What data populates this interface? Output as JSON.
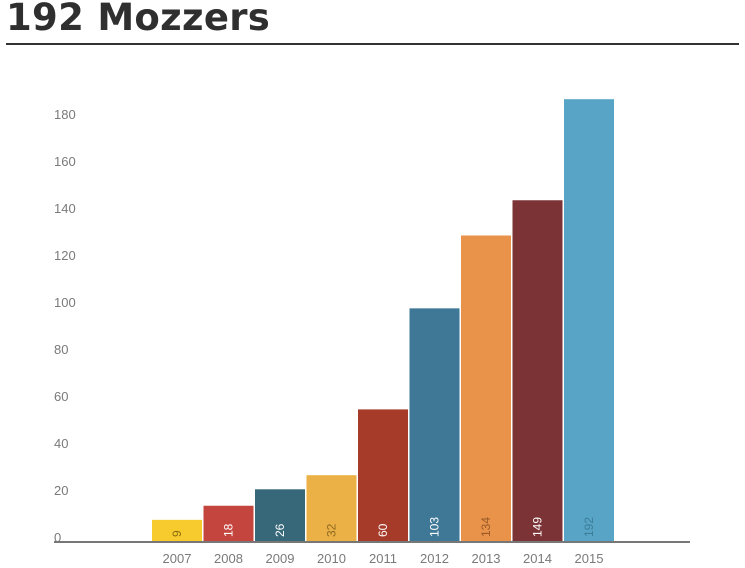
{
  "title": "192 Mozzers",
  "chart_data": {
    "type": "bar",
    "title": "192 Mozzers",
    "xlabel": "",
    "ylabel": "",
    "categories": [
      "2007",
      "2008",
      "2009",
      "2010",
      "2011",
      "2012",
      "2013",
      "2014",
      "2015"
    ],
    "values": [
      9,
      18,
      26,
      32,
      60,
      103,
      134,
      149,
      192
    ],
    "display_heights": [
      9,
      15,
      22,
      28,
      56,
      99,
      130,
      145,
      188
    ],
    "colors": [
      "#f7cb2d",
      "#c4453d",
      "#37687a",
      "#ebb046",
      "#a63b2a",
      "#3f7896",
      "#e8924a",
      "#7b3336",
      "#58a4c6"
    ],
    "label_colors": [
      "#8a6d10",
      "#ffffff",
      "#ffffff",
      "#8f6a20",
      "#ffffff",
      "#ffffff",
      "#9a5a28",
      "#ffffff",
      "#3d7d98"
    ],
    "yticks": [
      0,
      20,
      40,
      60,
      80,
      100,
      120,
      140,
      160,
      180
    ],
    "ylim": [
      0,
      190
    ],
    "grid": false,
    "legend": "none"
  }
}
